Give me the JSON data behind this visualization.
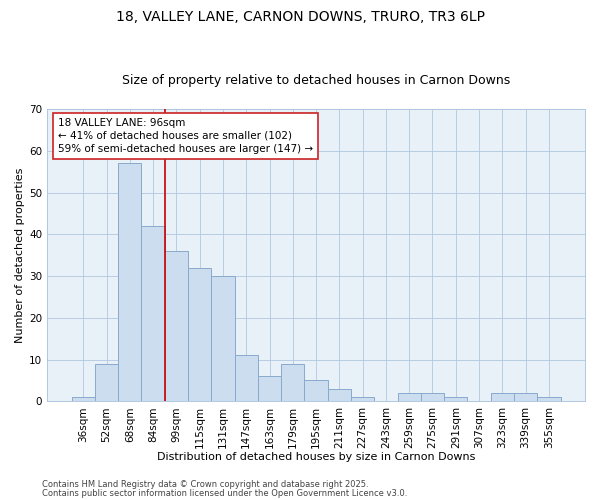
{
  "title1": "18, VALLEY LANE, CARNON DOWNS, TRURO, TR3 6LP",
  "title2": "Size of property relative to detached houses in Carnon Downs",
  "xlabel": "Distribution of detached houses by size in Carnon Downs",
  "ylabel": "Number of detached properties",
  "categories": [
    "36sqm",
    "52sqm",
    "68sqm",
    "84sqm",
    "99sqm",
    "115sqm",
    "131sqm",
    "147sqm",
    "163sqm",
    "179sqm",
    "195sqm",
    "211sqm",
    "227sqm",
    "243sqm",
    "259sqm",
    "275sqm",
    "291sqm",
    "307sqm",
    "323sqm",
    "339sqm",
    "355sqm"
  ],
  "values": [
    1,
    9,
    57,
    42,
    36,
    32,
    30,
    11,
    6,
    9,
    5,
    3,
    1,
    0,
    2,
    2,
    1,
    0,
    2,
    2,
    1
  ],
  "bar_color": "#ccddf0",
  "bar_edge_color": "#88aacc",
  "red_line_idx": 3.5,
  "annotation_line1": "18 VALLEY LANE: 96sqm",
  "annotation_line2": "← 41% of detached houses are smaller (102)",
  "annotation_line3": "59% of semi-detached houses are larger (147) →",
  "annotation_box_facecolor": "#ffffff",
  "annotation_box_edgecolor": "#cc2222",
  "footnote1": "Contains HM Land Registry data © Crown copyright and database right 2025.",
  "footnote2": "Contains public sector information licensed under the Open Government Licence v3.0.",
  "fig_facecolor": "#ffffff",
  "ax_facecolor": "#e8f0f8",
  "grid_color": "#b0c8e0",
  "ylim": [
    0,
    70
  ],
  "yticks": [
    0,
    10,
    20,
    30,
    40,
    50,
    60,
    70
  ],
  "title1_fontsize": 10,
  "title2_fontsize": 9,
  "axis_label_fontsize": 8,
  "tick_fontsize": 7.5,
  "annotation_fontsize": 7.5,
  "footnote_fontsize": 6
}
